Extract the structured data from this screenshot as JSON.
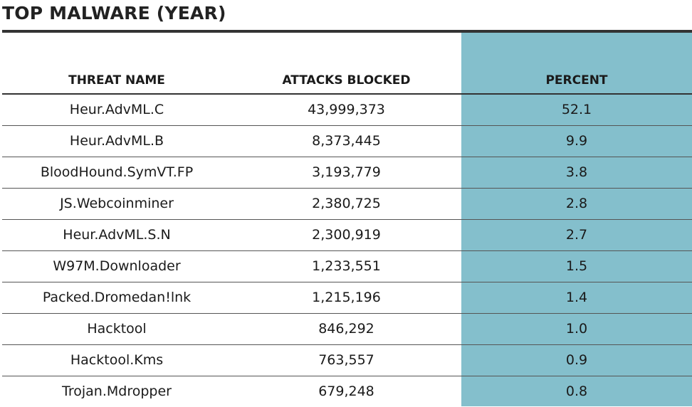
{
  "title": "TOP MALWARE (YEAR)",
  "headers": {
    "threat_name": "THREAT NAME",
    "attacks_blocked": "ATTACKS BLOCKED",
    "percent": "PERCENT"
  },
  "rows": [
    {
      "name": "Heur.AdvML.C",
      "attacks": "43,999,373",
      "percent": "52.1"
    },
    {
      "name": "Heur.AdvML.B",
      "attacks": "8,373,445",
      "percent": "9.9"
    },
    {
      "name": "BloodHound.SymVT.FP",
      "attacks": "3,193,779",
      "percent": "3.8"
    },
    {
      "name": "JS.Webcoinminer",
      "attacks": "2,380,725",
      "percent": "2.8"
    },
    {
      "name": "Heur.AdvML.S.N",
      "attacks": "2,300,919",
      "percent": "2.7"
    },
    {
      "name": "W97M.Downloader",
      "attacks": "1,233,551",
      "percent": "1.5"
    },
    {
      "name": "Packed.Dromedan!lnk",
      "attacks": "1,215,196",
      "percent": "1.4"
    },
    {
      "name": "Hacktool",
      "attacks": "846,292",
      "percent": "1.0"
    },
    {
      "name": "Hacktool.Kms",
      "attacks": "763,557",
      "percent": "0.9"
    },
    {
      "name": "Trojan.Mdropper",
      "attacks": "679,248",
      "percent": "0.8"
    }
  ],
  "colors": {
    "highlight_column": "#84bfcc",
    "rule": "#333333",
    "text": "#1a1a1a"
  }
}
